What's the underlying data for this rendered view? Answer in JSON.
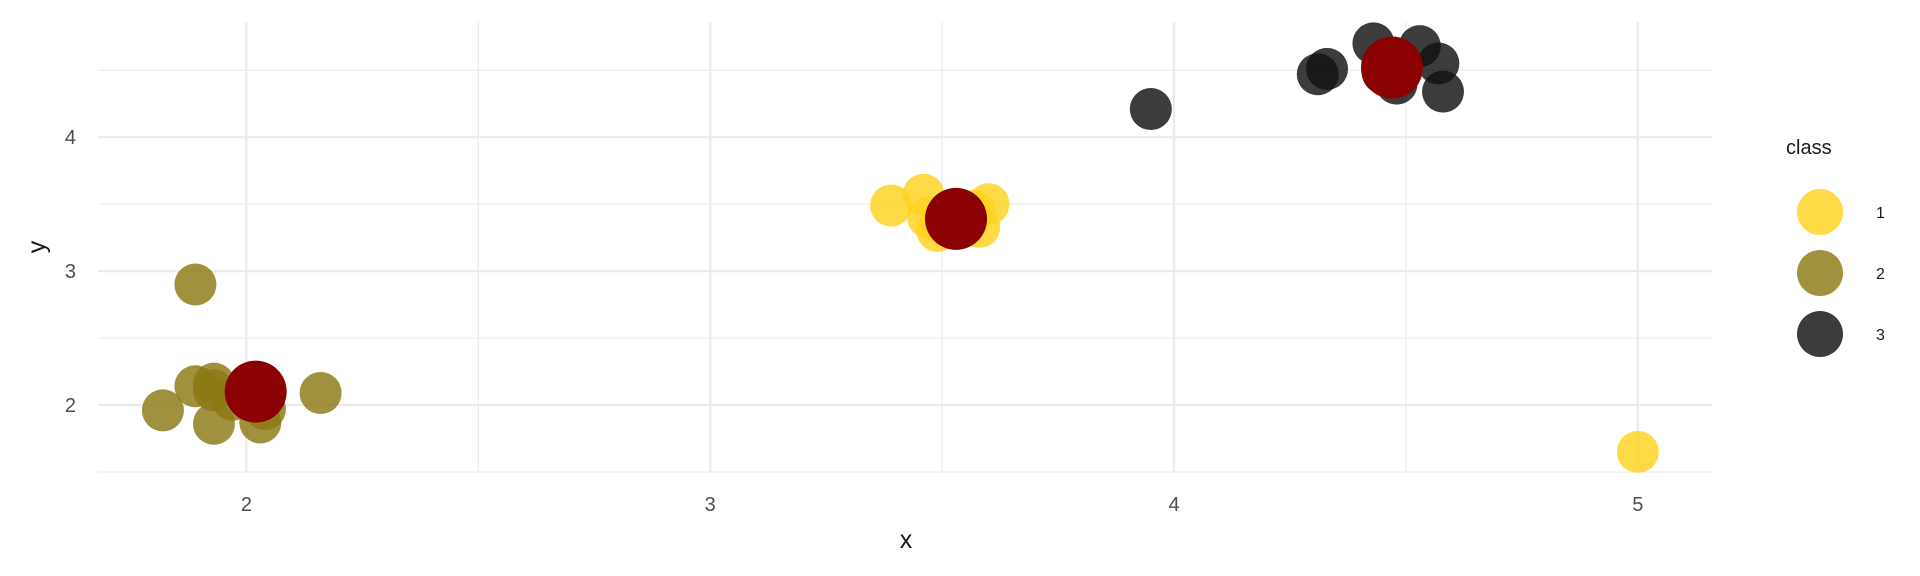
{
  "chart_data": {
    "type": "scatter",
    "title": "",
    "xlabel": "x",
    "ylabel": "y",
    "xlim": [
      1.68,
      5.16
    ],
    "ylim": [
      1.5,
      4.86
    ],
    "x_ticks": [
      2,
      3,
      4,
      5
    ],
    "x_tick_labels": [
      "2",
      "3",
      "4",
      "5"
    ],
    "y_ticks": [
      2,
      3,
      4
    ],
    "y_tick_labels": [
      "2",
      "3",
      "4"
    ],
    "grid": true,
    "legend": {
      "title": "class",
      "position": "right",
      "entries": [
        {
          "label": "1",
          "color": "#FFD21F"
        },
        {
          "label": "2",
          "color": "#8B7914"
        },
        {
          "label": "3",
          "color": "#111111"
        }
      ]
    },
    "series": [
      {
        "name": "1",
        "color": "#FFD21F",
        "points": [
          {
            "x": 3.39,
            "y": 3.49
          },
          {
            "x": 3.46,
            "y": 3.57
          },
          {
            "x": 3.49,
            "y": 3.3
          },
          {
            "x": 3.5,
            "y": 3.35
          },
          {
            "x": 3.58,
            "y": 3.33
          },
          {
            "x": 3.6,
            "y": 3.5
          },
          {
            "x": 3.57,
            "y": 3.45
          },
          {
            "x": 3.52,
            "y": 3.43
          },
          {
            "x": 3.47,
            "y": 3.4
          },
          {
            "x": 5.0,
            "y": 1.65
          }
        ]
      },
      {
        "name": "2",
        "color": "#8B7914",
        "points": [
          {
            "x": 1.89,
            "y": 2.9
          },
          {
            "x": 1.82,
            "y": 1.96
          },
          {
            "x": 1.89,
            "y": 2.14
          },
          {
            "x": 1.93,
            "y": 2.16
          },
          {
            "x": 1.93,
            "y": 2.11
          },
          {
            "x": 1.93,
            "y": 1.86
          },
          {
            "x": 2.03,
            "y": 1.87
          },
          {
            "x": 2.04,
            "y": 1.97
          },
          {
            "x": 2.16,
            "y": 2.09
          },
          {
            "x": 1.97,
            "y": 2.04
          }
        ]
      },
      {
        "name": "3",
        "color": "#111111",
        "points": [
          {
            "x": 3.95,
            "y": 4.21
          },
          {
            "x": 4.31,
            "y": 4.47
          },
          {
            "x": 4.33,
            "y": 4.51
          },
          {
            "x": 4.43,
            "y": 4.7
          },
          {
            "x": 4.53,
            "y": 4.68
          },
          {
            "x": 4.57,
            "y": 4.55
          },
          {
            "x": 4.58,
            "y": 4.34
          },
          {
            "x": 4.48,
            "y": 4.4
          },
          {
            "x": 4.45,
            "y": 4.48
          }
        ]
      }
    ],
    "centroids": {
      "color": "#8B0000",
      "points": [
        {
          "x": 3.53,
          "y": 3.39
        },
        {
          "x": 2.02,
          "y": 2.1
        },
        {
          "x": 4.47,
          "y": 4.52
        }
      ]
    }
  }
}
